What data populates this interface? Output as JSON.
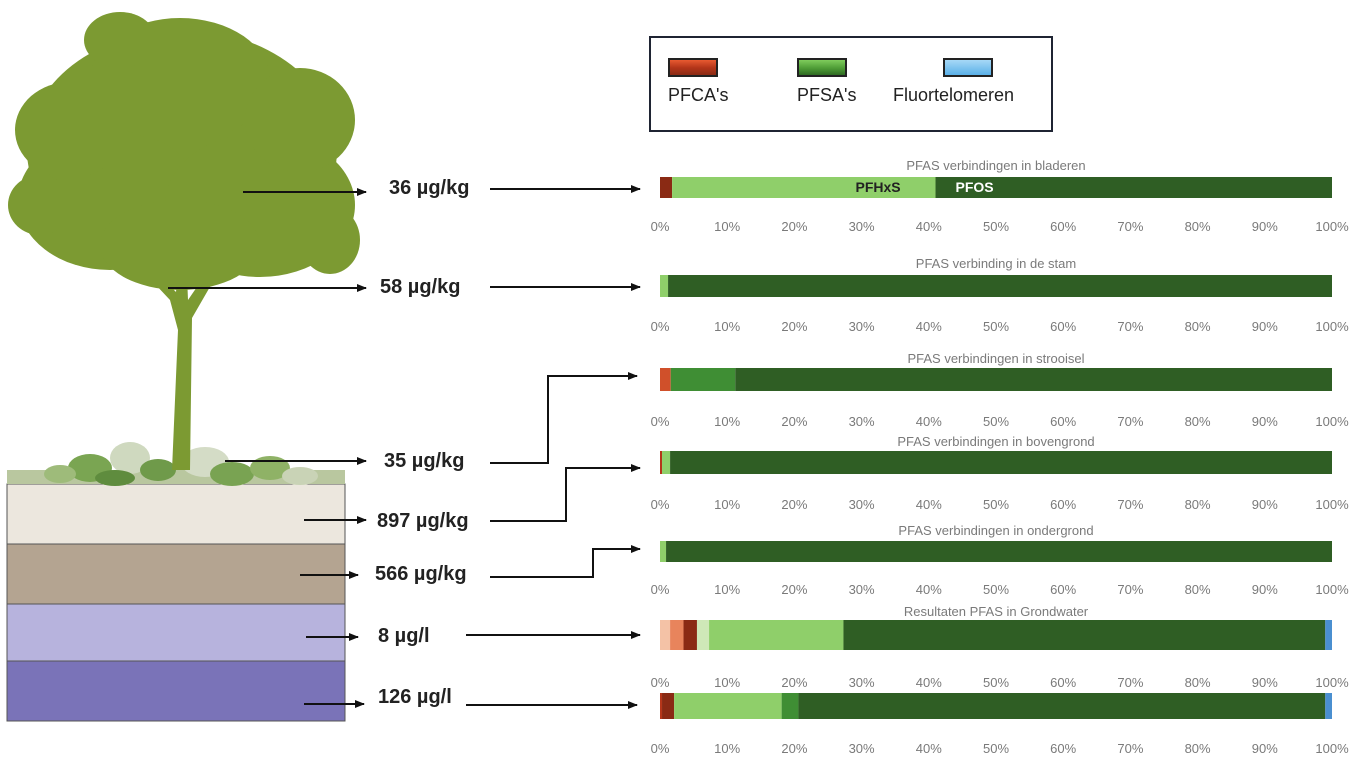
{
  "legend": {
    "items": [
      {
        "label": "PFCA's",
        "color": "#b5361a"
      },
      {
        "label": "PFSA's",
        "color": "#4e9c36"
      },
      {
        "label": "Fluortelomeren",
        "color": "#5ab0e8"
      }
    ]
  },
  "concentrations": [
    {
      "label": "36 µg/kg"
    },
    {
      "label": "58 µg/kg"
    },
    {
      "label": "35 µg/kg"
    },
    {
      "label": "897 µg/kg"
    },
    {
      "label": "566 µg/kg"
    },
    {
      "label": "8 µg/l"
    },
    {
      "label": "126 µg/l"
    }
  ],
  "chart_data": {
    "type": "bar",
    "orientation": "horizontal-stacked-100",
    "x_ticks": [
      "0%",
      "10%",
      "20%",
      "30%",
      "40%",
      "50%",
      "60%",
      "70%",
      "80%",
      "90%",
      "100%"
    ],
    "xlim": [
      0,
      100
    ],
    "charts": [
      {
        "title": "PFAS verbindingen in bladeren",
        "segments": [
          {
            "value": 1.8,
            "color": "#8a2a14"
          },
          {
            "value": 39.2,
            "color": "#8fcf6a",
            "label": "PFHxS"
          },
          {
            "value": 59.0,
            "color": "#2f5e24",
            "label": "PFOS"
          }
        ]
      },
      {
        "title": "PFAS verbinding in de stam",
        "segments": [
          {
            "value": 1.2,
            "color": "#8fcf6a"
          },
          {
            "value": 98.8,
            "color": "#2f5e24"
          }
        ]
      },
      {
        "title": "PFAS verbindingen in strooisel",
        "segments": [
          {
            "value": 1.6,
            "color": "#d0502a"
          },
          {
            "value": 9.6,
            "color": "#3f8e34"
          },
          {
            "value": 88.8,
            "color": "#2f5e24"
          }
        ]
      },
      {
        "title": "PFAS verbindingen in bovengrond",
        "segments": [
          {
            "value": 0.3,
            "color": "#b5361a"
          },
          {
            "value": 1.2,
            "color": "#8fcf6a"
          },
          {
            "value": 98.5,
            "color": "#2f5e24"
          }
        ]
      },
      {
        "title": "PFAS verbindingen in ondergrond",
        "segments": [
          {
            "value": 0.9,
            "color": "#8fcf6a"
          },
          {
            "value": 99.1,
            "color": "#2f5e24"
          }
        ]
      },
      {
        "title": "Resultaten PFAS in Grondwater",
        "segments": [
          {
            "value": 1.5,
            "color": "#f4c2a6"
          },
          {
            "value": 2.0,
            "color": "#e8845c"
          },
          {
            "value": 2.0,
            "color": "#8a2a14"
          },
          {
            "value": 1.8,
            "color": "#cfe8b8"
          },
          {
            "value": 20.0,
            "color": "#8fcf6a"
          },
          {
            "value": 71.7,
            "color": "#2f5e24"
          },
          {
            "value": 1.0,
            "color": "#4a8fd0"
          }
        ]
      },
      {
        "title": "",
        "segments": [
          {
            "value": 0.3,
            "color": "#b5361a"
          },
          {
            "value": 1.8,
            "color": "#8a2a14"
          },
          {
            "value": 16.0,
            "color": "#8fcf6a"
          },
          {
            "value": 2.5,
            "color": "#3f8e34"
          },
          {
            "value": 78.4,
            "color": "#2f5e24"
          },
          {
            "value": 1.0,
            "color": "#4a8fd0"
          }
        ]
      }
    ]
  }
}
